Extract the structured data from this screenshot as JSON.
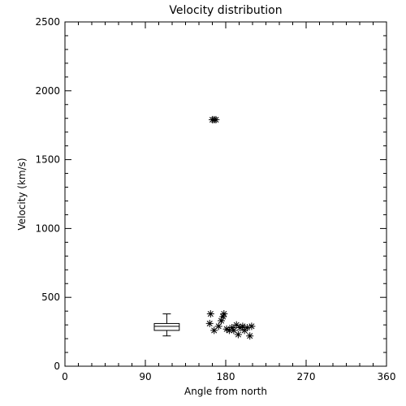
{
  "chart_data": {
    "type": "scatter",
    "title": "Velocity distribution",
    "xlabel": "Angle from north",
    "ylabel": "Velocity (km/s)",
    "xlim": [
      0,
      360
    ],
    "ylim": [
      0,
      2500
    ],
    "xticks": [
      0,
      90,
      180,
      270,
      360
    ],
    "yticks": [
      0,
      500,
      1000,
      1500,
      2000,
      2500
    ],
    "grid": false,
    "marker": "asterisk",
    "colors": {
      "foreground": "#000000",
      "background": "#ffffff"
    },
    "points": [
      {
        "x": 165,
        "y": 1790
      },
      {
        "x": 167,
        "y": 1790
      },
      {
        "x": 169,
        "y": 1790
      },
      {
        "x": 163,
        "y": 380
      },
      {
        "x": 162,
        "y": 310
      },
      {
        "x": 167,
        "y": 260
      },
      {
        "x": 172,
        "y": 290
      },
      {
        "x": 175,
        "y": 330
      },
      {
        "x": 177,
        "y": 360
      },
      {
        "x": 178,
        "y": 380
      },
      {
        "x": 181,
        "y": 270
      },
      {
        "x": 184,
        "y": 260
      },
      {
        "x": 187,
        "y": 280
      },
      {
        "x": 189,
        "y": 260
      },
      {
        "x": 192,
        "y": 300
      },
      {
        "x": 194,
        "y": 230
      },
      {
        "x": 196,
        "y": 280
      },
      {
        "x": 199,
        "y": 290
      },
      {
        "x": 201,
        "y": 260
      },
      {
        "x": 204,
        "y": 280
      },
      {
        "x": 207,
        "y": 220
      },
      {
        "x": 209,
        "y": 290
      }
    ],
    "boxplot": {
      "x_left": 100,
      "x_right": 128,
      "whisker_low": 220,
      "q1": 260,
      "median": 290,
      "q3": 310,
      "whisker_high": 380
    }
  }
}
